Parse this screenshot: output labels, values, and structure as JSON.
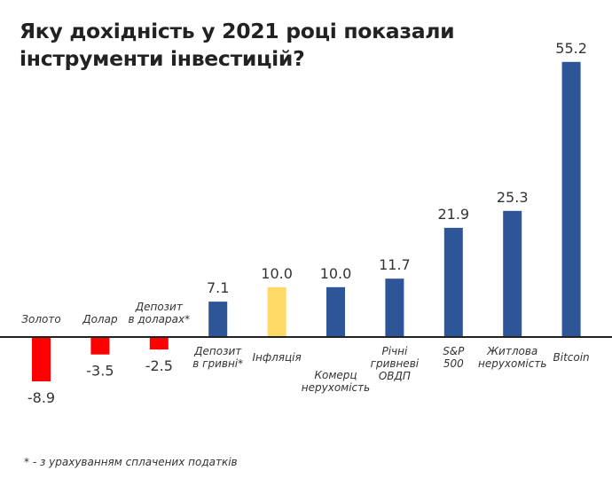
{
  "chart_data": {
    "type": "bar",
    "title": "Яку дохідність у 2021 році показали інструменти інвестицій?",
    "xlabel": "",
    "ylabel": "",
    "ylim": [
      -8.9,
      55.2
    ],
    "grid": false,
    "legend": "none",
    "categories": [
      [
        "Золото"
      ],
      [
        "Долар"
      ],
      [
        "Депозит",
        "в доларах*"
      ],
      [
        "Депозит",
        "в гривні*"
      ],
      [
        "Інфляція"
      ],
      [
        "Комерц",
        "нерухомість"
      ],
      [
        "Річні",
        "гривневі",
        "ОВДП"
      ],
      [
        "S&P",
        "500"
      ],
      [
        "Житлова",
        "нерухомість"
      ],
      [
        "Bitcoin"
      ]
    ],
    "values": [
      -8.9,
      -3.5,
      -2.5,
      7.1,
      10.0,
      10.0,
      11.7,
      21.9,
      25.3,
      55.2
    ],
    "value_labels": [
      "-8.9",
      "-3.5",
      "-2.5",
      "7.1",
      "10.0",
      "10.0",
      "11.7",
      "21.9",
      "25.3",
      "55.2"
    ],
    "bar_colors": [
      "#ff0000",
      "#ff0000",
      "#ff0000",
      "#2e5597",
      "#fed966",
      "#2e5597",
      "#2e5597",
      "#2e5597",
      "#2e5597",
      "#2e5597"
    ],
    "footnote": "* - з урахуванням сплачених податків"
  },
  "header": {
    "title": "Яку дохідність у 2021 році показали інструменти інвестицій?"
  },
  "footer": {
    "note": "* - з урахуванням сплачених податків"
  },
  "colors": {
    "negative": "#ff0000",
    "positive": "#2e5597",
    "inflation": "#fed966",
    "axis": "#222222"
  }
}
